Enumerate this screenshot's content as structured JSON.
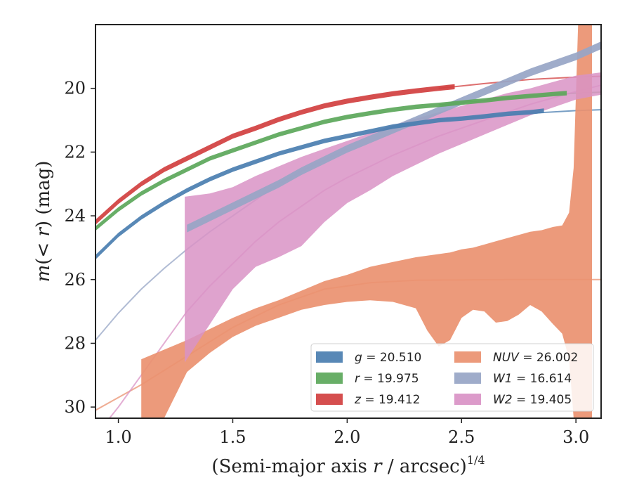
{
  "chart_data": {
    "type": "line",
    "title": "",
    "xlabel": "(Semi-major axis r / arcsec)",
    "xlabel_parts": {
      "prefix": "(Semi-major axis ",
      "var": "r",
      "suffix": " / arcsec)",
      "sup": "1/4"
    },
    "ylabel": "m(< r) (mag)",
    "ylabel_parts": {
      "var": "m",
      "mid": "(< ",
      "var2": "r",
      "suffix": ") (mag)"
    },
    "xlim": [
      0.9,
      3.11
    ],
    "ylim": [
      30.35,
      18.0
    ],
    "y_inverted": true,
    "x_ticks": [
      1.0,
      1.5,
      2.0,
      2.5,
      3.0
    ],
    "x_tick_labels": [
      "1.0",
      "1.5",
      "2.0",
      "2.5",
      "3.0"
    ],
    "y_ticks": [
      20,
      22,
      24,
      26,
      28,
      30
    ],
    "y_tick_labels": [
      "20",
      "22",
      "24",
      "26",
      "28",
      "30"
    ],
    "grid": false,
    "legend_position": "lower-right",
    "series": [
      {
        "name": "g",
        "label_var": "g",
        "label_value": " = 20.510",
        "color": "#4a7eb0",
        "band_x": [
          0.9,
          1.0,
          1.1,
          1.2,
          1.3,
          1.4,
          1.5,
          1.6,
          1.7,
          1.8,
          1.9,
          2.0,
          2.1,
          2.2,
          2.3,
          2.4,
          2.5,
          2.6,
          2.7,
          2.8,
          2.86
        ],
        "band_y": [
          25.3,
          24.6,
          24.05,
          23.6,
          23.2,
          22.85,
          22.55,
          22.3,
          22.05,
          21.85,
          21.65,
          21.5,
          21.35,
          21.2,
          21.1,
          21.0,
          20.95,
          20.88,
          20.8,
          20.75,
          20.7
        ],
        "band_halfwidth": 0.07,
        "fit_x": [
          2.4,
          2.6,
          2.8,
          3.0,
          3.11
        ],
        "fit_y": [
          20.98,
          20.88,
          20.78,
          20.7,
          20.67
        ]
      },
      {
        "name": "r",
        "label_var": "r",
        "label_value": " = 19.975",
        "color": "#5ba75a",
        "band_x": [
          0.9,
          1.0,
          1.1,
          1.2,
          1.3,
          1.4,
          1.5,
          1.6,
          1.7,
          1.8,
          1.9,
          2.0,
          2.1,
          2.2,
          2.3,
          2.4,
          2.5,
          2.6,
          2.7,
          2.8,
          2.9,
          2.96
        ],
        "band_y": [
          24.4,
          23.8,
          23.3,
          22.9,
          22.55,
          22.2,
          21.95,
          21.7,
          21.45,
          21.25,
          21.05,
          20.9,
          20.78,
          20.67,
          20.58,
          20.52,
          20.45,
          20.38,
          20.3,
          20.24,
          20.18,
          20.15
        ],
        "band_halfwidth": 0.07,
        "fit_x": [
          2.4,
          2.6,
          2.8,
          3.0,
          3.11
        ],
        "fit_y": [
          20.52,
          20.38,
          20.24,
          20.15,
          20.12
        ]
      },
      {
        "name": "z",
        "label_var": "z",
        "label_value": " = 19.412",
        "color": "#d13f3f",
        "band_x": [
          0.9,
          1.0,
          1.1,
          1.2,
          1.3,
          1.4,
          1.5,
          1.6,
          1.7,
          1.8,
          1.9,
          2.0,
          2.1,
          2.2,
          2.3,
          2.4,
          2.47
        ],
        "band_y": [
          24.2,
          23.55,
          23.0,
          22.55,
          22.2,
          21.85,
          21.5,
          21.25,
          20.98,
          20.75,
          20.55,
          20.4,
          20.28,
          20.17,
          20.08,
          20.0,
          19.95
        ],
        "band_halfwidth": 0.08,
        "fit_x": [
          2.4,
          2.6,
          2.8,
          3.0,
          3.11
        ],
        "fit_y": [
          20.0,
          19.85,
          19.72,
          19.65,
          19.62
        ]
      },
      {
        "name": "NUV",
        "label_var": "NUV",
        "label_value": " = 26.002",
        "color": "#ea9170",
        "band_x": [
          1.1,
          1.2,
          1.3,
          1.4,
          1.5,
          1.6,
          1.7,
          1.8,
          1.9,
          2.0,
          2.1,
          2.2,
          2.3,
          2.35,
          2.4,
          2.45,
          2.5,
          2.55,
          2.6,
          2.65,
          2.7,
          2.75,
          2.8,
          2.85,
          2.9,
          2.94,
          2.97,
          2.99,
          3.01,
          3.07
        ],
        "band_lower": [
          30.35,
          30.35,
          28.9,
          28.3,
          27.8,
          27.45,
          27.2,
          26.95,
          26.8,
          26.7,
          26.65,
          26.7,
          26.9,
          27.6,
          28.1,
          27.9,
          27.2,
          26.95,
          27.0,
          27.35,
          27.3,
          27.1,
          26.8,
          27.0,
          27.4,
          27.7,
          28.5,
          30.35,
          30.35,
          30.35
        ],
        "band_upper": [
          28.5,
          28.2,
          27.9,
          27.55,
          27.2,
          26.9,
          26.65,
          26.35,
          26.05,
          25.85,
          25.6,
          25.45,
          25.3,
          25.25,
          25.2,
          25.15,
          25.05,
          25.0,
          24.9,
          24.8,
          24.7,
          24.6,
          24.5,
          24.45,
          24.35,
          24.3,
          23.9,
          22.5,
          17.9,
          17.9
        ],
        "fit_x": [
          0.9,
          1.1,
          1.3,
          1.5,
          1.7,
          1.9,
          2.1,
          2.3,
          2.5,
          2.7,
          2.9,
          3.11
        ],
        "fit_y": [
          30.1,
          29.3,
          28.4,
          27.5,
          26.8,
          26.3,
          26.1,
          26.02,
          26.01,
          26.0,
          26.0,
          26.0
        ]
      },
      {
        "name": "W1",
        "label_var": "W1",
        "label_value": " = 16.614",
        "color": "#97a5c6",
        "band_x": [
          1.3,
          1.4,
          1.5,
          1.6,
          1.7,
          1.8,
          1.9,
          2.0,
          2.1,
          2.2,
          2.3,
          2.4,
          2.5,
          2.6,
          2.7,
          2.8,
          2.9,
          3.0,
          3.11
        ],
        "band_y": [
          24.4,
          24.05,
          23.7,
          23.35,
          23.0,
          22.6,
          22.25,
          21.9,
          21.6,
          21.3,
          21.0,
          20.7,
          20.4,
          20.1,
          19.8,
          19.5,
          19.25,
          19.0,
          18.65
        ],
        "band_halfwidth": 0.12,
        "fit_x": [
          0.9,
          1.0,
          1.1,
          1.2,
          1.3,
          1.4,
          1.5,
          1.6,
          1.7,
          1.8,
          1.9,
          2.0
        ],
        "fit_y": [
          27.9,
          27.05,
          26.3,
          25.65,
          25.05,
          24.5,
          24.0,
          23.5,
          23.0,
          22.6,
          22.25,
          21.9
        ]
      },
      {
        "name": "W2",
        "label_var": "W2",
        "label_value": " = 19.405",
        "color": "#d993c5",
        "band_x": [
          1.29,
          1.4,
          1.5,
          1.6,
          1.7,
          1.8,
          1.9,
          2.0,
          2.1,
          2.2,
          2.3,
          2.4,
          2.5,
          2.6,
          2.7,
          2.8,
          2.9,
          3.0,
          3.11
        ],
        "band_lower": [
          28.6,
          27.4,
          26.3,
          25.6,
          25.3,
          24.95,
          24.2,
          23.6,
          23.2,
          22.75,
          22.4,
          22.05,
          21.75,
          21.45,
          21.15,
          20.85,
          20.6,
          20.35,
          20.2
        ],
        "band_upper": [
          23.4,
          23.3,
          23.1,
          22.75,
          22.45,
          22.15,
          21.9,
          21.65,
          21.4,
          21.15,
          20.95,
          20.75,
          20.55,
          20.35,
          20.15,
          20.0,
          19.8,
          19.6,
          19.5
        ],
        "fit_x": [
          0.9,
          1.0,
          1.1,
          1.2,
          1.3,
          1.4,
          1.5,
          1.6,
          1.7,
          1.8,
          1.9,
          2.0,
          2.2,
          2.4,
          2.6,
          2.8,
          3.0,
          3.11
        ],
        "fit_y": [
          30.9,
          30.0,
          29.0,
          28.0,
          27.0,
          26.2,
          25.5,
          24.8,
          24.2,
          23.7,
          23.2,
          22.8,
          22.1,
          21.5,
          21.0,
          20.5,
          20.1,
          19.9
        ]
      }
    ]
  }
}
